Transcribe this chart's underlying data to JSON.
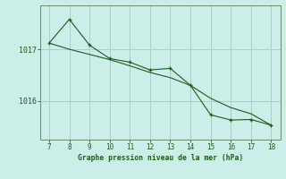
{
  "title": "Graphe pression niveau de la mer (hPa)",
  "bg_color": "#cceee8",
  "line_color": "#1a5c1a",
  "grid_color": "#a8cfc8",
  "axis_color": "#6a8a6a",
  "x_ticks": [
    7,
    8,
    9,
    10,
    11,
    12,
    13,
    14,
    15,
    16,
    17,
    18
  ],
  "y_ticks": [
    1016,
    1017
  ],
  "xlim": [
    6.55,
    18.45
  ],
  "ylim": [
    1015.25,
    1017.85
  ],
  "line1_x": [
    7,
    8,
    9,
    10,
    11,
    12,
    13,
    14,
    15,
    16,
    17,
    18
  ],
  "line1_y": [
    1017.12,
    1017.58,
    1017.08,
    1016.82,
    1016.75,
    1016.6,
    1016.63,
    1016.3,
    1015.73,
    1015.63,
    1015.64,
    1015.53
  ],
  "line2_x": [
    7,
    8,
    9,
    10,
    11,
    12,
    13,
    14,
    15,
    16,
    17,
    18
  ],
  "line2_y": [
    1017.12,
    1017.0,
    1016.9,
    1016.8,
    1016.68,
    1016.55,
    1016.45,
    1016.3,
    1016.05,
    1015.87,
    1015.75,
    1015.53
  ]
}
